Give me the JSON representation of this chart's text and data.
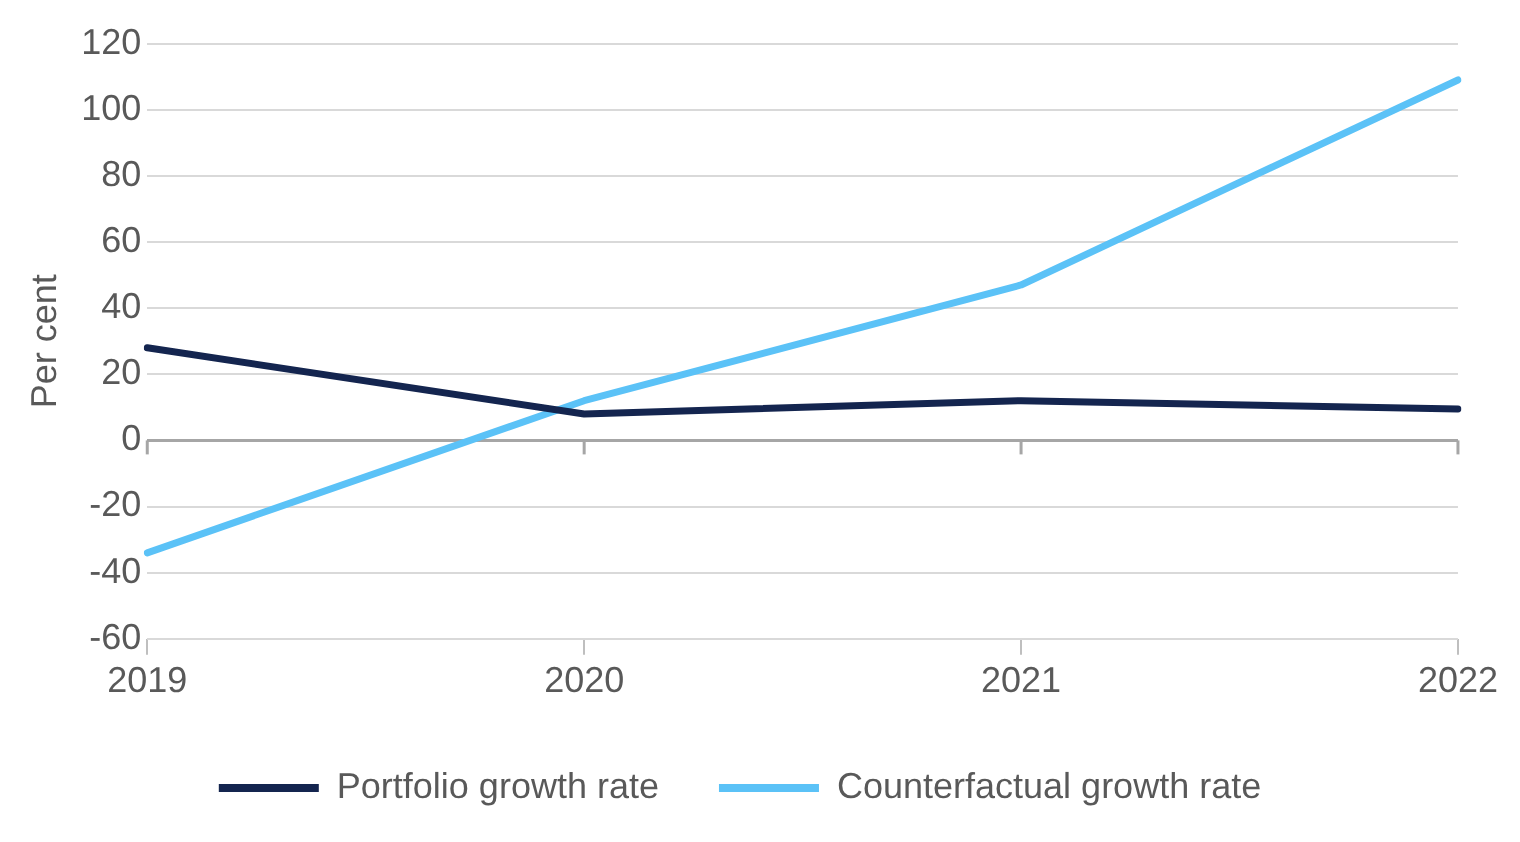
{
  "chart_data": {
    "type": "line",
    "ylabel": "Per cent",
    "categories": [
      "2019",
      "2020",
      "2021",
      "2022"
    ],
    "series": [
      {
        "name": "Portfolio growth rate",
        "color": "#14254f",
        "values": [
          28,
          8,
          12,
          9.5
        ]
      },
      {
        "name": "Counterfactual growth rate",
        "color": "#5bc2f7",
        "values": [
          -34,
          12,
          47,
          109
        ]
      }
    ],
    "ylim": [
      -60,
      120
    ],
    "yticks": [
      -60,
      -40,
      -20,
      0,
      20,
      40,
      60,
      80,
      100,
      120
    ],
    "grid": "y",
    "legend": "bottom",
    "marker": "none",
    "line_style": "solid"
  }
}
